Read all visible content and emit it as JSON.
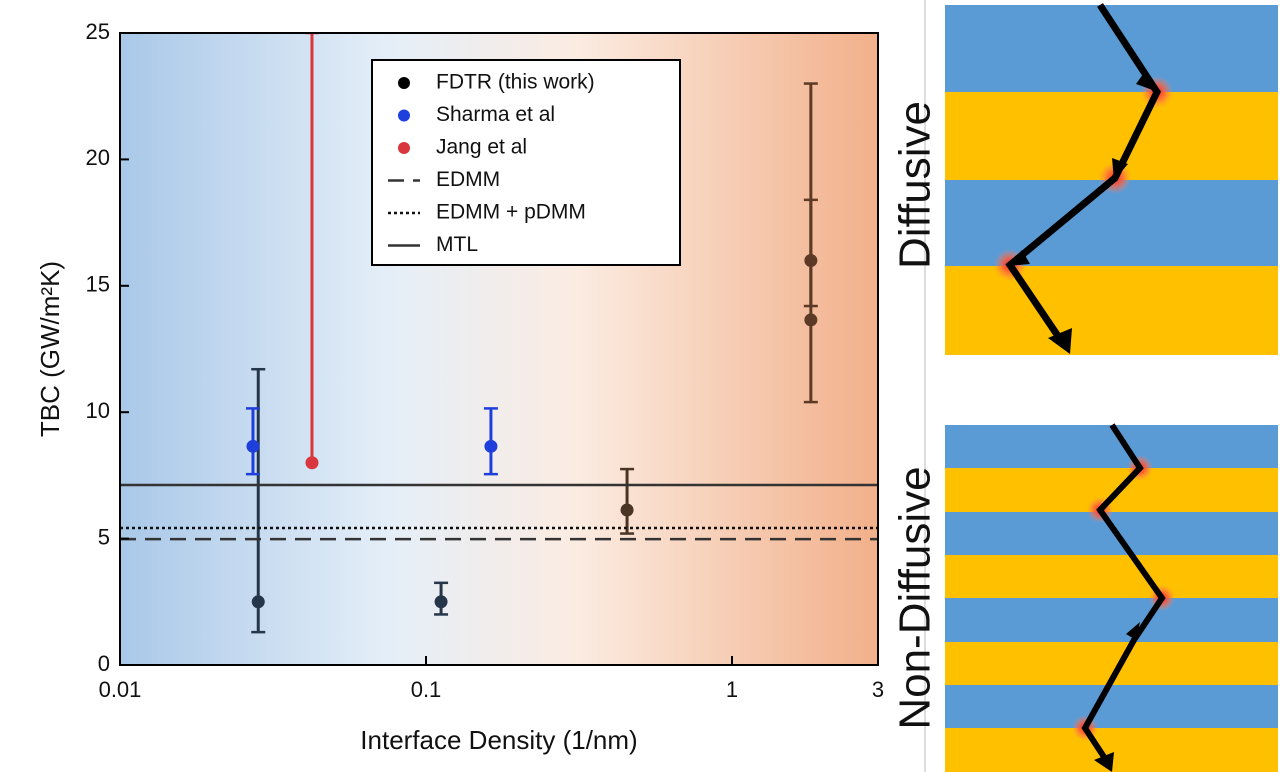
{
  "chart_data": {
    "type": "scatter",
    "x_label": "Interface Density (1/nm)",
    "y_label": "TBC (GW/m²K)",
    "xscale": "log",
    "xlim": [
      0.01,
      3
    ],
    "xticks": [
      0.01,
      0.1,
      1,
      3
    ],
    "ylim": [
      0,
      25
    ],
    "yticks": [
      0,
      5,
      10,
      15,
      20,
      25
    ],
    "series": [
      {
        "name": "FDTR (this work)",
        "color": "#000000",
        "kind": "errorbar",
        "point_colors": [
          "#26364a",
          "#26364a",
          "#4a3424",
          "#5c3a26",
          "#5c3a26"
        ],
        "x": [
          0.0283,
          0.112,
          0.454,
          1.81,
          1.81
        ],
        "values": [
          2.5,
          2.5,
          6.13,
          16.0,
          13.65
        ],
        "yerr_low": [
          1.3,
          2.0,
          5.2,
          14.2,
          10.4
        ],
        "yerr_high": [
          11.7,
          3.25,
          7.75,
          18.4,
          23.0
        ]
      },
      {
        "name": "Sharma et al",
        "color": "#1f3fdc",
        "kind": "errorbar",
        "x": [
          0.0272,
          0.163
        ],
        "values": [
          8.65,
          8.65
        ],
        "yerr_low": [
          7.55,
          7.55
        ],
        "yerr_high": [
          10.15,
          10.15
        ]
      },
      {
        "name": "Jang et al",
        "color": "#d9363e",
        "kind": "errorbar",
        "x": [
          0.0424
        ],
        "values": [
          8.0
        ],
        "yerr_low": [
          8.0
        ],
        "yerr_high": [
          25
        ]
      },
      {
        "name": "EDMM",
        "color": "#333333",
        "kind": "hline",
        "dash": "dashed",
        "values": [
          4.98
        ]
      },
      {
        "name": "EDMM + pDMM",
        "color": "#111111",
        "kind": "hline",
        "dash": "dotted",
        "values": [
          5.42
        ]
      },
      {
        "name": "MTL",
        "color": "#333333",
        "kind": "hline",
        "dash": "solid",
        "values": [
          7.12
        ]
      }
    ]
  },
  "panels": [
    {
      "label": "Diffusive",
      "color": "#5b9bd5"
    },
    {
      "label": "Non-Diffusive",
      "color": "#ed7d31"
    }
  ]
}
